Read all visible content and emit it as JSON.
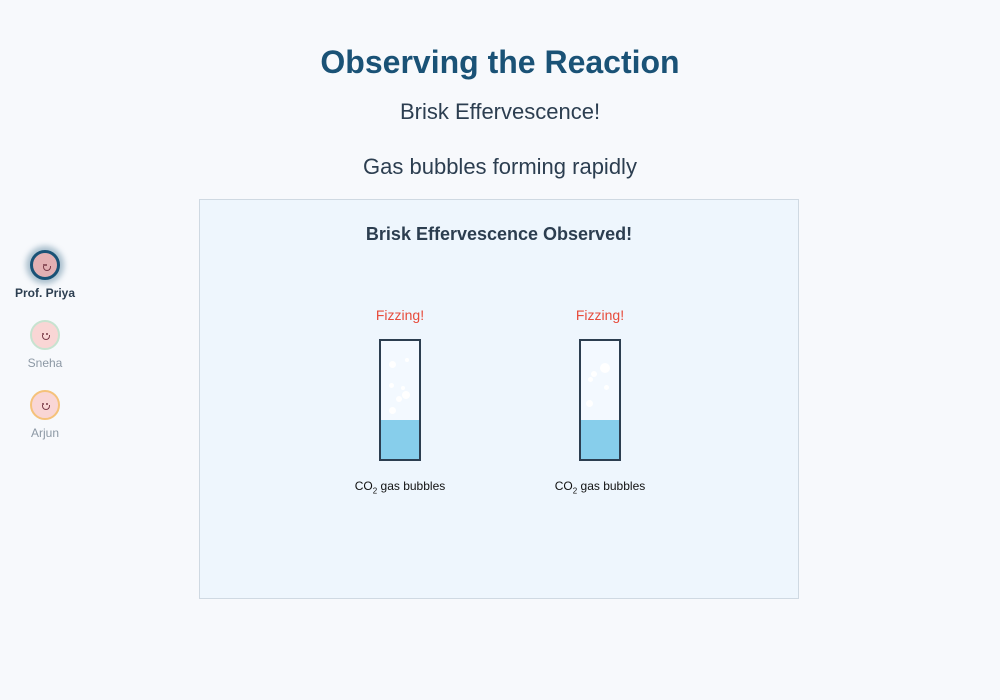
{
  "header": {
    "title": "Observing the Reaction",
    "subtitle": "Brisk Effervescence!",
    "caption": "Gas bubbles forming rapidly"
  },
  "participants": [
    {
      "name": "Prof. Priya",
      "active": true
    },
    {
      "name": "Sneha",
      "active": false
    },
    {
      "name": "Arjun",
      "active": false
    }
  ],
  "stage": {
    "title": "Brisk Effervescence Observed!",
    "tubes": [
      {
        "status": "Fizzing!",
        "caption_prefix": "CO",
        "caption_sub": "2",
        "caption_suffix": " gas bubbles",
        "liquid_fill": 0.33
      },
      {
        "status": "Fizzing!",
        "caption_prefix": "CO",
        "caption_sub": "2",
        "caption_suffix": " gas bubbles",
        "liquid_fill": 0.33
      }
    ]
  },
  "colors": {
    "title": "#1a5276",
    "fizzing": "#e74c3c",
    "liquid": "#87ceeb"
  }
}
